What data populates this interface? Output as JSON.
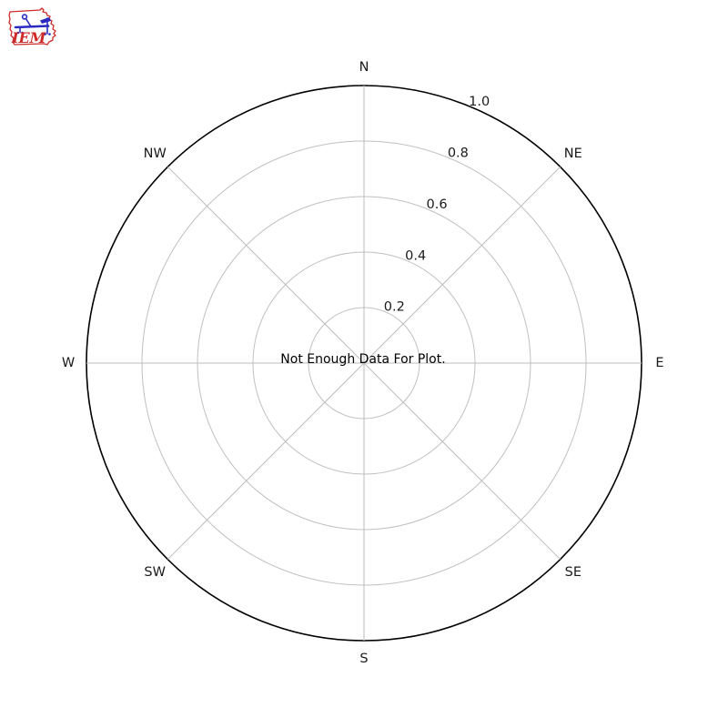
{
  "page": {
    "background": "#ffffff"
  },
  "logo": {
    "text": "IEM",
    "outline_color": "#ce2a28",
    "instrument_color": "#2a2ac0",
    "text_color": "#ce2a28"
  },
  "chart_data": {
    "type": "polar",
    "subtype": "wind-rose",
    "title": "",
    "message": "Not Enough Data For Plot.",
    "directions": [
      "N",
      "NE",
      "E",
      "SE",
      "S",
      "SW",
      "W",
      "NW"
    ],
    "r_ticks": [
      0.2,
      0.4,
      0.6,
      0.8,
      1.0
    ],
    "r_tick_labels": [
      "0.2",
      "0.4",
      "0.6",
      "0.8",
      "1.0"
    ],
    "r_min": 0,
    "r_max": 1.0,
    "r_label_azimuth_deg": 22.5,
    "grid": true,
    "series": [],
    "colors": {
      "outer_ring": "#000000",
      "grid": "#c0c0c0",
      "spoke": "#bbbbbb",
      "text": "#1a1a1a"
    }
  }
}
